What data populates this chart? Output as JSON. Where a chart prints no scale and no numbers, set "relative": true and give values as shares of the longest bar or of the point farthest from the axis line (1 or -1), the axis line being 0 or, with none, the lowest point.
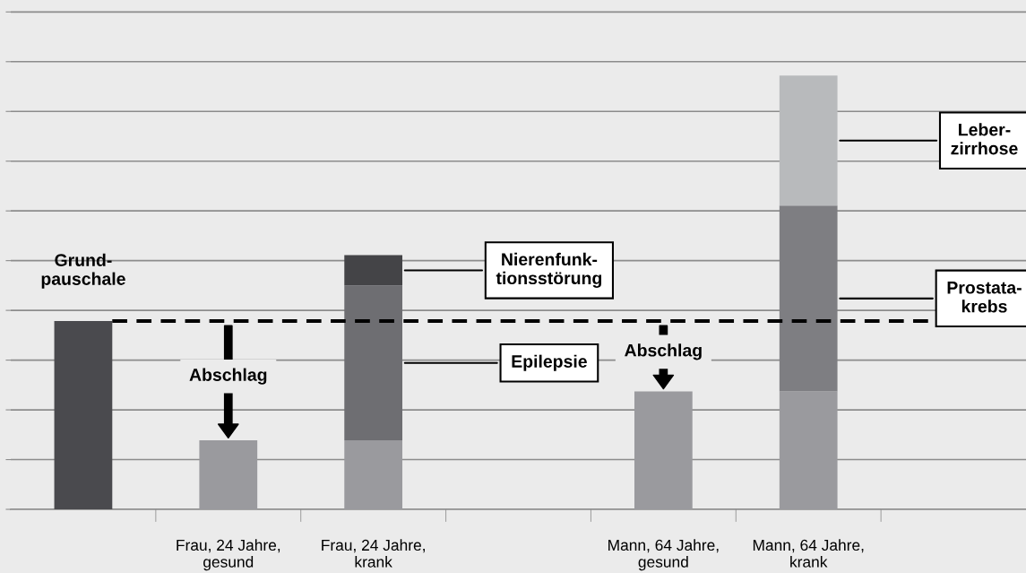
{
  "chart_data": {
    "type": "bar",
    "relative": true,
    "stacked": true,
    "grid": "y",
    "categories": [
      null,
      "Frau, 24 Jahre,\ngesund",
      "Frau, 24 Jahre,\nkrank",
      null,
      "Mann, 64 Jahre,\ngesund",
      "Mann, 64 Jahre,\nkrank",
      null
    ],
    "series": [
      {
        "values": [
          0.434,
          0.159,
          0.159,
          null,
          0.272,
          0.272,
          null
        ],
        "colors": [
          "#4a4a4e",
          "#9a9a9e",
          "#9a9a9e",
          "#9a9a9e",
          "#9a9a9e",
          "#9a9a9e",
          "#9a9a9e"
        ]
      },
      {
        "values": [
          null,
          null,
          0.357,
          null,
          null,
          0.428,
          null
        ],
        "colors": [
          "#6e6e72",
          "#6e6e72",
          "#6e6e72",
          "#6e6e72",
          "#6e6e72",
          "#7e7e82",
          "#6e6e72"
        ]
      },
      {
        "values": [
          null,
          null,
          0.07,
          null,
          null,
          0.3,
          null
        ],
        "colors": [
          "#444447",
          "#444447",
          "#444447",
          "#444447",
          "#444447",
          "#b8babc",
          "#444447"
        ]
      }
    ],
    "ref_lines": [
      {
        "axis": "y",
        "value": 0.434,
        "label": null,
        "color": "#000000",
        "line_style": "dashed"
      }
    ],
    "annotations": [
      "Grund-\npauschale",
      "Abschlag",
      "Abschlag",
      "Epilepsie",
      "Nierenfunk-\ntionsstörung",
      "Prostata-\nkrebs",
      "Leber-\nzirrhose"
    ]
  }
}
